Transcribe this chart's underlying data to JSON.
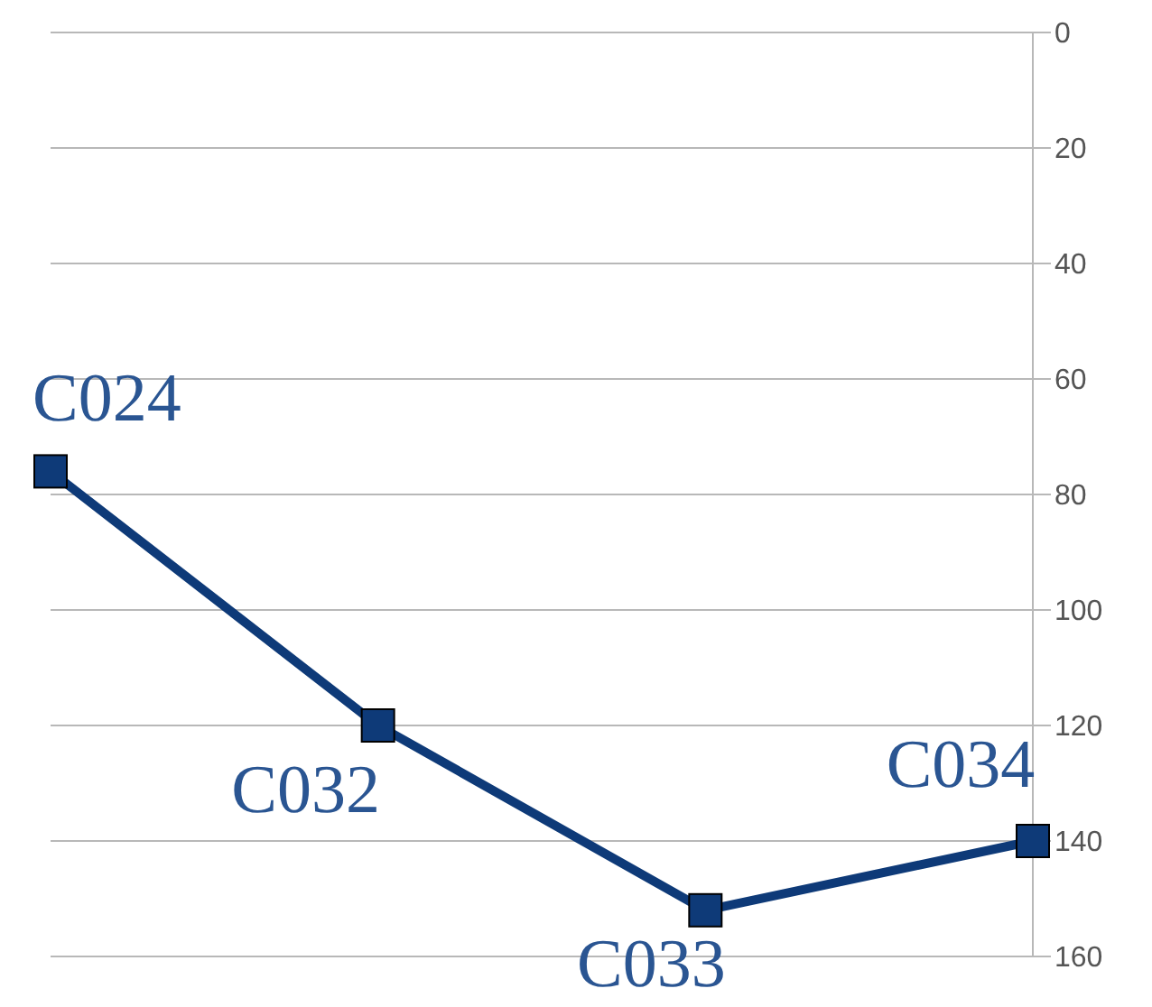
{
  "chart_data": {
    "type": "line",
    "categories": [
      null,
      null,
      null,
      null
    ],
    "series": [
      {
        "color": "#0e3a78",
        "values": [
          76,
          120,
          152,
          140
        ],
        "value_labels": [
          "C024",
          "C032",
          "C033",
          "C034"
        ]
      }
    ],
    "ylim": [
      160,
      0
    ],
    "yticks": [
      0,
      20,
      40,
      60,
      80,
      100,
      120,
      140,
      160
    ],
    "grid": "y",
    "marker": "square",
    "line_style": "solid",
    "tick_labels": "y"
  }
}
